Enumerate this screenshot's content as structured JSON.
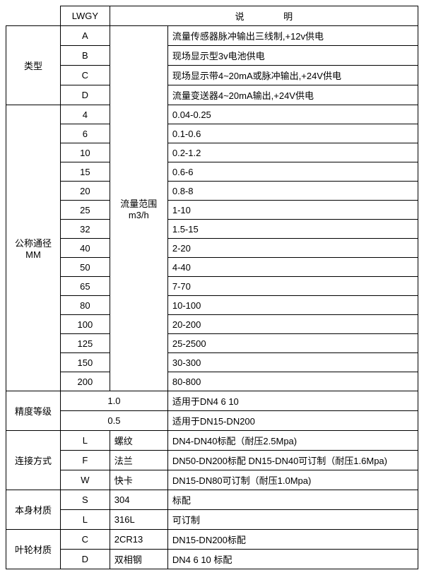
{
  "header": {
    "lwgy": "LWGY",
    "desc": "说 明"
  },
  "type_section": {
    "label": "类型",
    "rows": [
      {
        "code": "A",
        "desc": "流量传感器脉冲输出三线制,+12v供电"
      },
      {
        "code": "B",
        "desc": "现场显示型3v电池供电"
      },
      {
        "code": "C",
        "desc": "现场显示带4~20mA或脉冲输出,+24V供电"
      },
      {
        "code": "D",
        "desc": "流量变送器4~20mA输出,+24V供电"
      }
    ]
  },
  "dn_section": {
    "label": "公称通径\nMM",
    "range_label": "流量范围\nm3/h",
    "rows": [
      {
        "code": "4",
        "range": "0.04-0.25"
      },
      {
        "code": "6",
        "range": "0.1-0.6"
      },
      {
        "code": "10",
        "range": "0.2-1.2"
      },
      {
        "code": "15",
        "range": "0.6-6"
      },
      {
        "code": "20",
        "range": "0.8-8"
      },
      {
        "code": "25",
        "range": "1-10"
      },
      {
        "code": "32",
        "range": "1.5-15"
      },
      {
        "code": "40",
        "range": "2-20"
      },
      {
        "code": "50",
        "range": "4-40"
      },
      {
        "code": "65",
        "range": "7-70"
      },
      {
        "code": "80",
        "range": "10-100"
      },
      {
        "code": "100",
        "range": "20-200"
      },
      {
        "code": "125",
        "range": "25-2500"
      },
      {
        "code": "150",
        "range": "30-300"
      },
      {
        "code": "200",
        "range": "80-800"
      }
    ]
  },
  "accuracy": {
    "label": "精度等级",
    "rows": [
      {
        "val": "1.0",
        "desc": "适用于DN4  6  10"
      },
      {
        "val": "0.5",
        "desc": "适用于DN15-DN200"
      }
    ]
  },
  "connection": {
    "label": "连接方式",
    "rows": [
      {
        "code": "L",
        "name": "螺纹",
        "desc": "DN4-DN40标配（耐压2.5Mpa)"
      },
      {
        "code": "F",
        "name": "法兰",
        "desc": "DN50-DN200标配 DN15-DN40可订制（耐压1.6Mpa)"
      },
      {
        "code": "W",
        "name": "快卡",
        "desc": "DN15-DN80可订制（耐压1.0Mpa)"
      }
    ]
  },
  "body_material": {
    "label": "本身材质",
    "rows": [
      {
        "code": "S",
        "name": "304",
        "desc": "标配"
      },
      {
        "code": "L",
        "name": "316L",
        "desc": "可订制"
      }
    ]
  },
  "impeller_material": {
    "label": "叶轮材质",
    "rows": [
      {
        "code": "C",
        "name": "2CR13",
        "desc": "DN15-DN200标配"
      },
      {
        "code": "D",
        "name": "双相钢",
        "desc": "DN4 6 10 标配"
      }
    ]
  }
}
